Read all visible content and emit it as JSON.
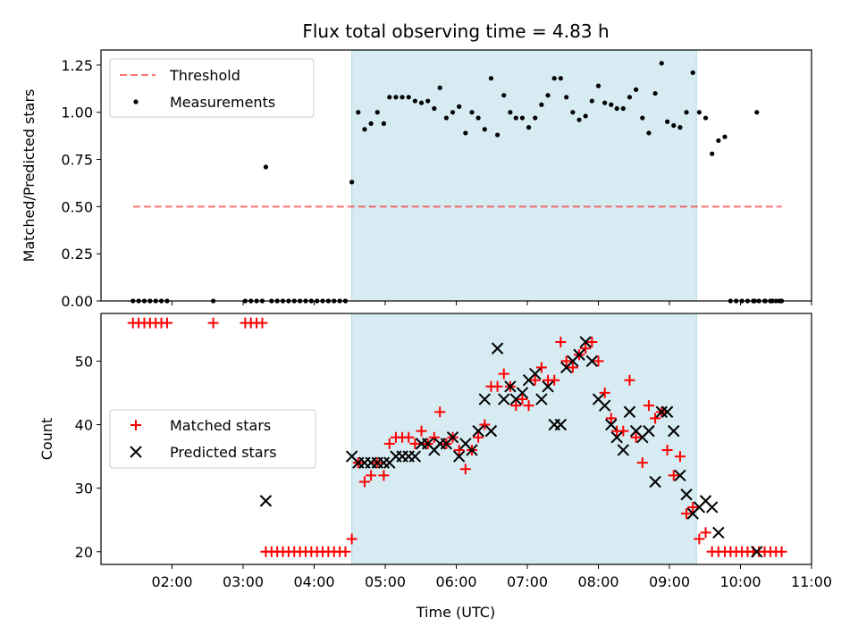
{
  "figure": {
    "title": "Flux total observing time = 4.83 h"
  },
  "colors": {
    "band": "#add8e6",
    "threshold": "#ff0000",
    "measurement": "#000000",
    "matched": "#ff0000",
    "predicted": "#000000"
  },
  "chart_data": [
    {
      "type": "scatter",
      "ylabel": "Matched/Predicted stars",
      "xlim": [
        1.0,
        11.0
      ],
      "ylim": [
        0.0,
        1.33
      ],
      "yticks": [
        0.0,
        0.25,
        0.5,
        0.75,
        1.0,
        1.25
      ],
      "ytick_labels": [
        "0.00",
        "0.25",
        "0.50",
        "0.75",
        "1.00",
        "1.25"
      ],
      "shaded_span": [
        4.53,
        9.38
      ],
      "legend_position": "upper-left",
      "threshold": {
        "name": "Threshold",
        "value": 0.5,
        "x_range": [
          1.45,
          10.58
        ]
      },
      "series": [
        {
          "name": "Measurements",
          "points": [
            [
              1.45,
              0
            ],
            [
              1.53,
              0
            ],
            [
              1.61,
              0
            ],
            [
              1.69,
              0
            ],
            [
              1.77,
              0
            ],
            [
              1.85,
              0
            ],
            [
              1.93,
              0
            ],
            [
              2.58,
              0
            ],
            [
              3.03,
              0
            ],
            [
              3.11,
              0
            ],
            [
              3.19,
              0
            ],
            [
              3.27,
              0
            ],
            [
              3.32,
              0.71
            ],
            [
              3.4,
              0
            ],
            [
              3.48,
              0
            ],
            [
              3.56,
              0
            ],
            [
              3.64,
              0
            ],
            [
              3.72,
              0
            ],
            [
              3.8,
              0
            ],
            [
              3.88,
              0
            ],
            [
              3.96,
              0
            ],
            [
              4.04,
              0
            ],
            [
              4.12,
              0
            ],
            [
              4.2,
              0
            ],
            [
              4.28,
              0
            ],
            [
              4.36,
              0
            ],
            [
              4.44,
              0
            ],
            [
              4.53,
              0.63
            ],
            [
              4.62,
              1.0
            ],
            [
              4.71,
              0.91
            ],
            [
              4.8,
              0.94
            ],
            [
              4.89,
              1.0
            ],
            [
              4.98,
              0.94
            ],
            [
              5.06,
              1.08
            ],
            [
              5.15,
              1.08
            ],
            [
              5.24,
              1.08
            ],
            [
              5.33,
              1.08
            ],
            [
              5.42,
              1.06
            ],
            [
              5.51,
              1.05
            ],
            [
              5.6,
              1.06
            ],
            [
              5.69,
              1.02
            ],
            [
              5.77,
              1.13
            ],
            [
              5.86,
              0.97
            ],
            [
              5.95,
              1.0
            ],
            [
              6.04,
              1.03
            ],
            [
              6.13,
              0.89
            ],
            [
              6.22,
              1.0
            ],
            [
              6.31,
              0.97
            ],
            [
              6.4,
              0.91
            ],
            [
              6.49,
              1.18
            ],
            [
              6.58,
              0.88
            ],
            [
              6.67,
              1.09
            ],
            [
              6.76,
              1.0
            ],
            [
              6.84,
              0.97
            ],
            [
              6.93,
              0.97
            ],
            [
              7.02,
              0.92
            ],
            [
              7.11,
              0.97
            ],
            [
              7.2,
              1.04
            ],
            [
              7.29,
              1.09
            ],
            [
              7.38,
              1.18
            ],
            [
              7.47,
              1.18
            ],
            [
              7.55,
              1.08
            ],
            [
              7.64,
              1.0
            ],
            [
              7.73,
              0.96
            ],
            [
              7.82,
              0.98
            ],
            [
              7.91,
              1.06
            ],
            [
              8.0,
              1.14
            ],
            [
              8.09,
              1.05
            ],
            [
              8.18,
              1.04
            ],
            [
              8.26,
              1.02
            ],
            [
              8.35,
              1.02
            ],
            [
              8.44,
              1.08
            ],
            [
              8.53,
              1.12
            ],
            [
              8.62,
              0.97
            ],
            [
              8.71,
              0.89
            ],
            [
              8.8,
              1.1
            ],
            [
              8.89,
              1.26
            ],
            [
              8.97,
              0.95
            ],
            [
              9.06,
              0.93
            ],
            [
              9.15,
              0.92
            ],
            [
              9.24,
              1.0
            ],
            [
              9.33,
              1.21
            ],
            [
              9.42,
              1.0
            ],
            [
              9.51,
              0.97
            ],
            [
              9.6,
              0.78
            ],
            [
              9.69,
              0.85
            ],
            [
              9.78,
              0.87
            ],
            [
              9.86,
              0
            ],
            [
              9.94,
              0
            ],
            [
              10.02,
              0
            ],
            [
              10.1,
              0
            ],
            [
              10.18,
              0
            ],
            [
              10.26,
              0
            ],
            [
              10.34,
              0
            ],
            [
              10.42,
              0
            ],
            [
              10.5,
              0
            ],
            [
              10.58,
              0
            ],
            [
              10.2,
              0
            ],
            [
              10.23,
              1.0
            ],
            [
              10.35,
              0
            ],
            [
              10.45,
              0
            ],
            [
              10.55,
              0
            ]
          ]
        }
      ]
    },
    {
      "type": "scatter",
      "xlabel": "Time (UTC)",
      "ylabel": "Count",
      "xlim": [
        1.0,
        11.0
      ],
      "ylim": [
        18.0,
        57.5
      ],
      "yticks": [
        20,
        30,
        40,
        50
      ],
      "xticks": [
        2,
        3,
        4,
        5,
        6,
        7,
        8,
        9,
        10,
        11
      ],
      "xtick_labels": [
        "02:00",
        "03:00",
        "04:00",
        "05:00",
        "06:00",
        "07:00",
        "08:00",
        "09:00",
        "10:00",
        "11:00"
      ],
      "shaded_span": [
        4.53,
        9.38
      ],
      "legend_position": "center-left",
      "series": [
        {
          "name": "Matched stars",
          "marker": "plus",
          "points": [
            [
              1.45,
              56
            ],
            [
              1.53,
              56
            ],
            [
              1.61,
              56
            ],
            [
              1.69,
              56
            ],
            [
              1.77,
              56
            ],
            [
              1.85,
              56
            ],
            [
              1.93,
              56
            ],
            [
              2.58,
              56
            ],
            [
              3.03,
              56
            ],
            [
              3.11,
              56
            ],
            [
              3.19,
              56
            ],
            [
              3.27,
              56
            ],
            [
              3.32,
              20
            ],
            [
              3.4,
              20
            ],
            [
              3.48,
              20
            ],
            [
              3.56,
              20
            ],
            [
              3.64,
              20
            ],
            [
              3.72,
              20
            ],
            [
              3.8,
              20
            ],
            [
              3.88,
              20
            ],
            [
              3.96,
              20
            ],
            [
              4.04,
              20
            ],
            [
              4.12,
              20
            ],
            [
              4.2,
              20
            ],
            [
              4.28,
              20
            ],
            [
              4.36,
              20
            ],
            [
              4.44,
              20
            ],
            [
              4.53,
              22
            ],
            [
              4.62,
              34
            ],
            [
              4.71,
              31
            ],
            [
              4.8,
              32
            ],
            [
              4.89,
              34
            ],
            [
              4.98,
              32
            ],
            [
              5.06,
              37
            ],
            [
              5.15,
              38
            ],
            [
              5.24,
              38
            ],
            [
              5.33,
              38
            ],
            [
              5.42,
              37
            ],
            [
              5.51,
              39
            ],
            [
              5.6,
              37
            ],
            [
              5.69,
              38
            ],
            [
              5.77,
              42
            ],
            [
              5.86,
              37
            ],
            [
              5.95,
              38
            ],
            [
              6.04,
              36
            ],
            [
              6.13,
              33
            ],
            [
              6.22,
              36
            ],
            [
              6.31,
              38
            ],
            [
              6.4,
              40
            ],
            [
              6.49,
              46
            ],
            [
              6.58,
              46
            ],
            [
              6.67,
              48
            ],
            [
              6.76,
              46
            ],
            [
              6.84,
              43
            ],
            [
              6.93,
              44
            ],
            [
              7.02,
              43
            ],
            [
              7.11,
              47
            ],
            [
              7.2,
              49
            ],
            [
              7.29,
              47
            ],
            [
              7.38,
              47
            ],
            [
              7.47,
              53
            ],
            [
              7.55,
              50
            ],
            [
              7.64,
              49
            ],
            [
              7.73,
              51
            ],
            [
              7.82,
              52
            ],
            [
              7.91,
              53
            ],
            [
              8.0,
              50
            ],
            [
              8.09,
              45
            ],
            [
              8.18,
              41
            ],
            [
              8.26,
              39
            ],
            [
              8.35,
              39
            ],
            [
              8.44,
              47
            ],
            [
              8.53,
              38
            ],
            [
              8.62,
              34
            ],
            [
              8.71,
              43
            ],
            [
              8.8,
              41
            ],
            [
              8.89,
              42
            ],
            [
              8.97,
              36
            ],
            [
              9.06,
              32
            ],
            [
              9.15,
              35
            ],
            [
              9.24,
              26
            ],
            [
              9.33,
              27
            ],
            [
              9.42,
              22
            ],
            [
              9.51,
              23
            ],
            [
              9.6,
              20
            ],
            [
              9.69,
              20
            ],
            [
              9.78,
              20
            ],
            [
              9.86,
              20
            ],
            [
              9.94,
              20
            ],
            [
              10.02,
              20
            ],
            [
              10.1,
              20
            ],
            [
              10.18,
              20
            ],
            [
              10.26,
              20
            ],
            [
              10.34,
              20
            ],
            [
              10.42,
              20
            ],
            [
              10.5,
              20
            ],
            [
              10.58,
              20
            ]
          ]
        },
        {
          "name": "Predicted stars",
          "marker": "x",
          "points": [
            [
              3.32,
              28
            ],
            [
              4.53,
              35
            ],
            [
              4.62,
              34
            ],
            [
              4.71,
              34
            ],
            [
              4.8,
              34
            ],
            [
              4.89,
              34
            ],
            [
              4.98,
              34
            ],
            [
              5.06,
              34
            ],
            [
              5.15,
              35
            ],
            [
              5.24,
              35
            ],
            [
              5.33,
              35
            ],
            [
              5.42,
              35
            ],
            [
              5.51,
              37
            ],
            [
              5.6,
              37
            ],
            [
              5.69,
              36
            ],
            [
              5.77,
              37
            ],
            [
              5.86,
              37
            ],
            [
              5.95,
              38
            ],
            [
              6.04,
              35
            ],
            [
              6.13,
              37
            ],
            [
              6.22,
              36
            ],
            [
              6.31,
              39
            ],
            [
              6.4,
              44
            ],
            [
              6.49,
              39
            ],
            [
              6.58,
              52
            ],
            [
              6.67,
              44
            ],
            [
              6.76,
              46
            ],
            [
              6.84,
              44
            ],
            [
              6.93,
              45
            ],
            [
              7.02,
              47
            ],
            [
              7.11,
              48
            ],
            [
              7.2,
              44
            ],
            [
              7.29,
              46
            ],
            [
              7.38,
              40
            ],
            [
              7.47,
              40
            ],
            [
              7.55,
              49
            ],
            [
              7.64,
              50
            ],
            [
              7.73,
              51
            ],
            [
              7.82,
              53
            ],
            [
              7.91,
              50
            ],
            [
              8.0,
              44
            ],
            [
              8.09,
              43
            ],
            [
              8.18,
              40
            ],
            [
              8.26,
              38
            ],
            [
              8.35,
              36
            ],
            [
              8.44,
              42
            ],
            [
              8.53,
              39
            ],
            [
              8.62,
              38
            ],
            [
              8.71,
              39
            ],
            [
              8.8,
              31
            ],
            [
              8.89,
              42
            ],
            [
              8.97,
              42
            ],
            [
              9.06,
              39
            ],
            [
              9.15,
              32
            ],
            [
              9.24,
              29
            ],
            [
              9.33,
              26
            ],
            [
              9.42,
              27
            ],
            [
              9.51,
              28
            ],
            [
              9.6,
              27
            ],
            [
              9.69,
              23
            ],
            [
              10.23,
              20
            ]
          ]
        }
      ]
    }
  ]
}
